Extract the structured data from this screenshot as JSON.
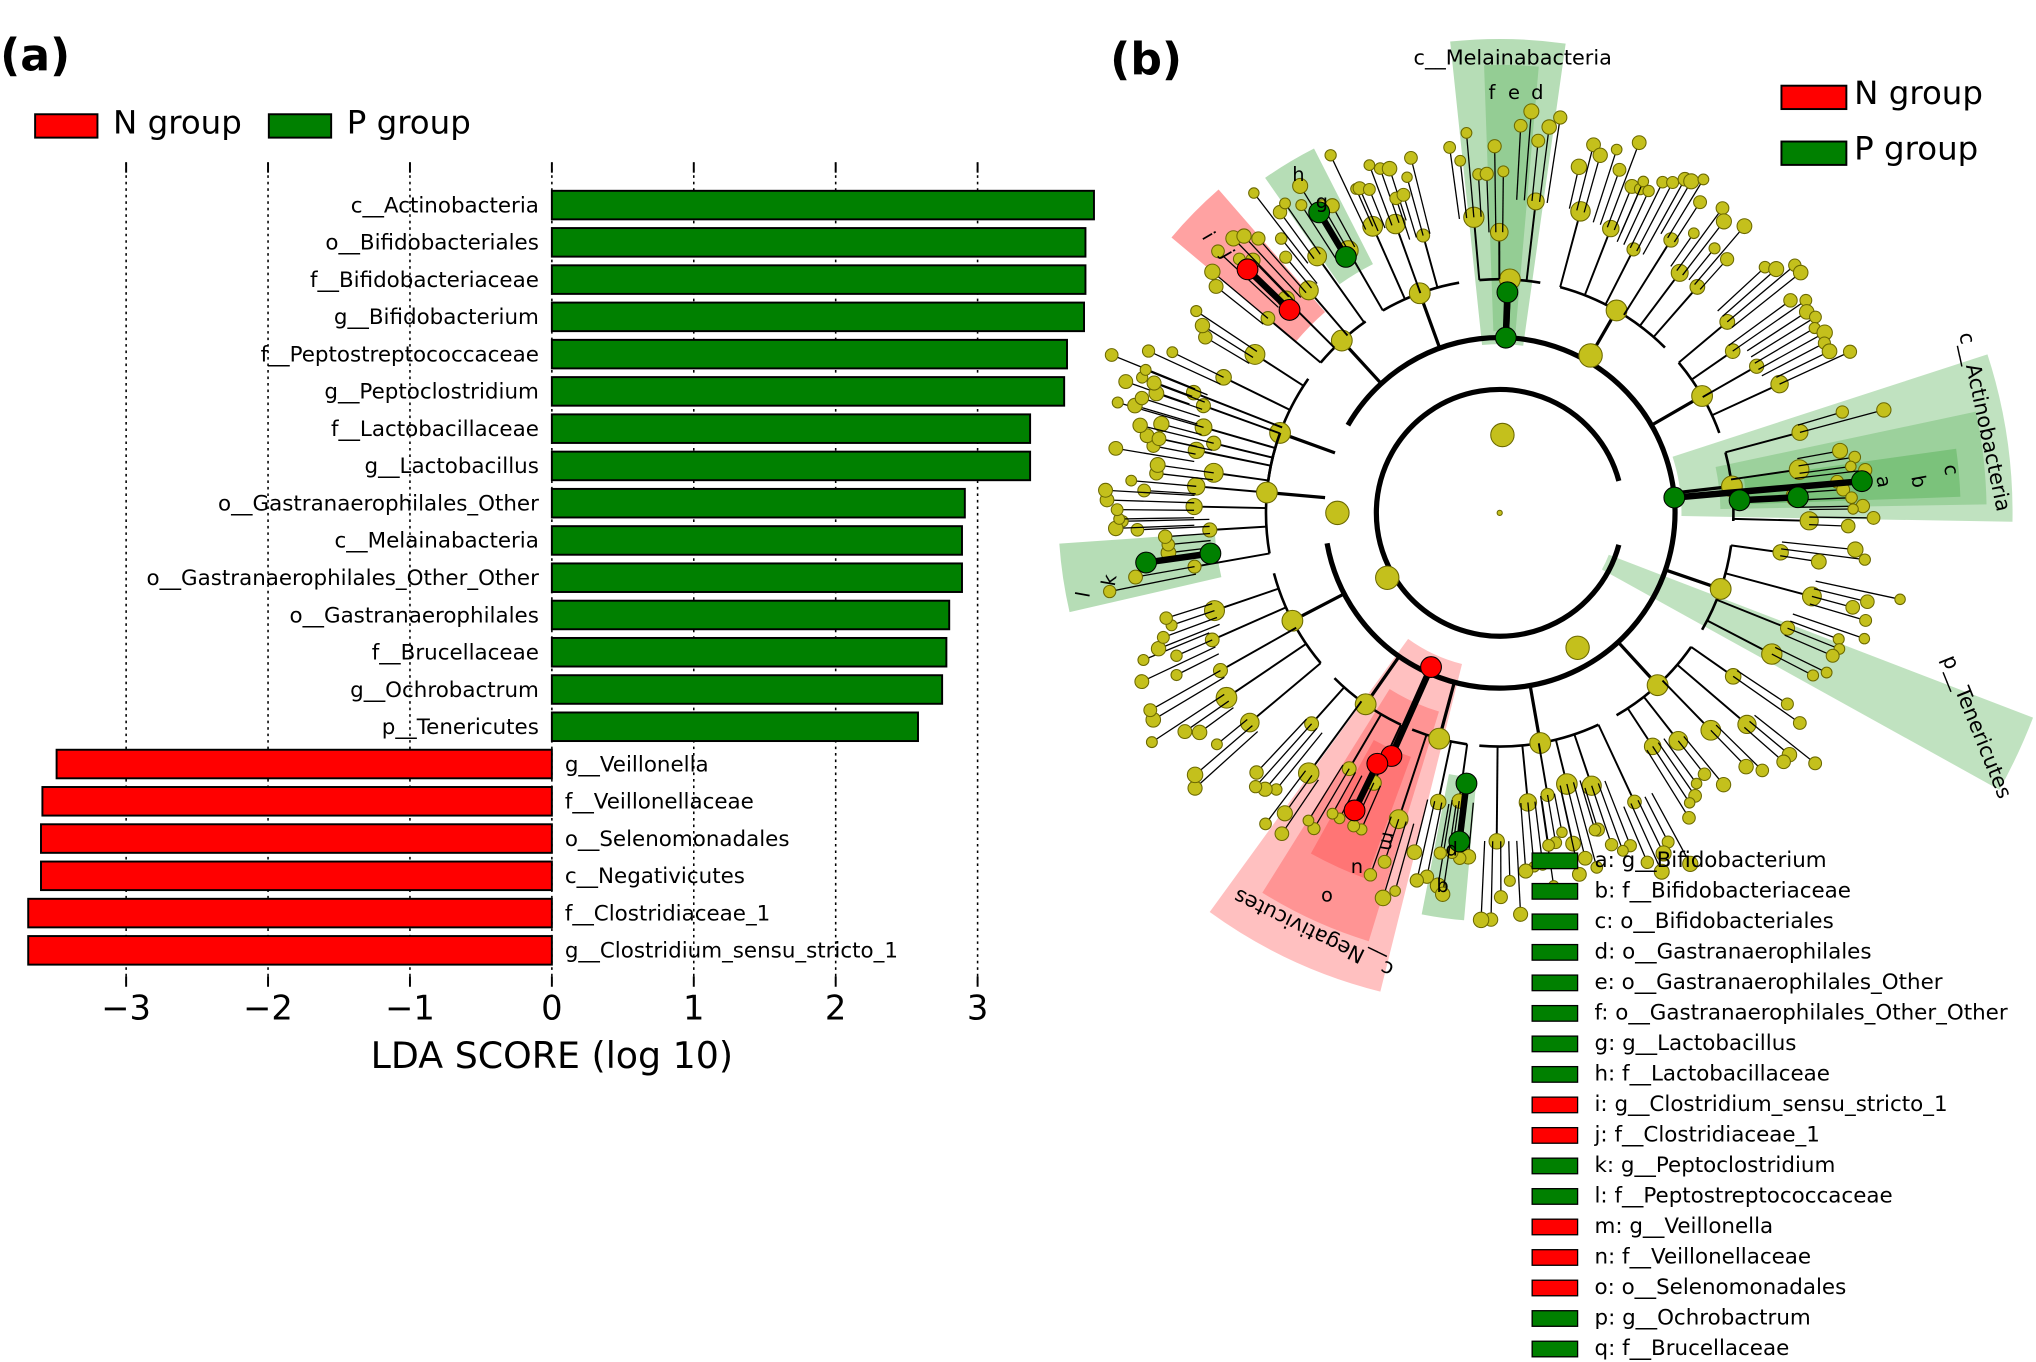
{
  "chart_data": {
    "type": "barh",
    "panel_label": "(a)",
    "categories": [
      "c__Actinobacteria",
      "o__Bifidobacteriales",
      "f__Bifidobacteriaceae",
      "g__Bifidobacterium",
      "f__Peptostreptococcaceae",
      "g__Peptoclostridium",
      "f__Lactobacillaceae",
      "g__Lactobacillus",
      "o__Gastranaerophilales_Other",
      "c__Melainabacteria",
      "o__Gastranaerophilales_Other_Other",
      "o__Gastranaerophilales",
      "f__Brucellaceae",
      "g__Ochrobactrum",
      "p__Tenericutes",
      "g__Veillonella",
      "f__Veillonellaceae",
      "o__Selenomonadales",
      "c__Negativicutes",
      "f__Clostridiaceae_1",
      "g__Clostridium_sensu_stricto_1"
    ],
    "series": [
      {
        "name": "N group",
        "color": "#ff0000",
        "values": [
          null,
          null,
          null,
          null,
          null,
          null,
          null,
          null,
          null,
          null,
          null,
          null,
          null,
          null,
          null,
          -3.49,
          -3.59,
          -3.6,
          -3.6,
          -3.69,
          -3.69
        ]
      },
      {
        "name": "P group",
        "color": "#008000",
        "values": [
          3.82,
          3.76,
          3.76,
          3.75,
          3.63,
          3.61,
          3.37,
          3.37,
          2.91,
          2.89,
          2.89,
          2.8,
          2.78,
          2.75,
          2.58,
          null,
          null,
          null,
          null,
          null,
          null
        ]
      }
    ],
    "xlabel": "LDA SCORE (log 10)",
    "xlim": [
      -3.72,
      3.83
    ],
    "xticks": [
      {
        "value": -3,
        "label": "−3"
      },
      {
        "value": -2,
        "label": "−2"
      },
      {
        "value": -1,
        "label": "−1"
      },
      0,
      1,
      2,
      3
    ],
    "grid": true
  },
  "cladogram": {
    "panel_label": "(b)",
    "legend": [
      {
        "name": "N group",
        "color": "#ff0000"
      },
      {
        "name": "P group",
        "color": "#008000"
      }
    ],
    "clade_labels": [
      "c__Melainabacteria",
      "c__Actinobacteria",
      "p__Tenericutes",
      "c__Negativicutes"
    ],
    "node_letters": [
      "f",
      "e",
      "d",
      "a",
      "b",
      "c",
      "h",
      "g",
      "i",
      "j",
      "k",
      "l",
      "m",
      "n",
      "o",
      "p",
      "q"
    ],
    "key": [
      {
        "label": "a: g__Bifidobacterium",
        "color": "#008000"
      },
      {
        "label": "b: f__Bifidobacteriaceae",
        "color": "#008000"
      },
      {
        "label": "c: o__Bifidobacteriales",
        "color": "#008000"
      },
      {
        "label": "d: o__Gastranaerophilales",
        "color": "#008000"
      },
      {
        "label": "e: o__Gastranaerophilales_Other",
        "color": "#008000"
      },
      {
        "label": "f: o__Gastranaerophilales_Other_Other",
        "color": "#008000"
      },
      {
        "label": "g: g__Lactobacillus",
        "color": "#008000"
      },
      {
        "label": "h: f__Lactobacillaceae",
        "color": "#008000"
      },
      {
        "label": "i: g__Clostridium_sensu_stricto_1",
        "color": "#ff0000"
      },
      {
        "label": "j: f__Clostridiaceae_1",
        "color": "#ff0000"
      },
      {
        "label": "k: g__Peptoclostridium",
        "color": "#008000"
      },
      {
        "label": "l: f__Peptostreptococcaceae",
        "color": "#008000"
      },
      {
        "label": "m: g__Veillonella",
        "color": "#ff0000"
      },
      {
        "label": "n: f__Veillonellaceae",
        "color": "#ff0000"
      },
      {
        "label": "o: o__Selenomonadales",
        "color": "#ff0000"
      },
      {
        "label": "p: g__Ochrobactrum",
        "color": "#008000"
      },
      {
        "label": "q: f__Brucellaceae",
        "color": "#008000"
      }
    ]
  }
}
